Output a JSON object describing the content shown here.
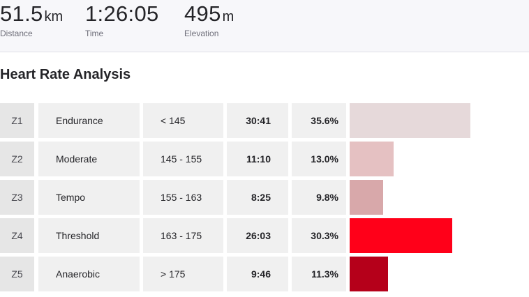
{
  "stats": {
    "distance": {
      "value": "51.5",
      "unit": "km",
      "label": "Distance"
    },
    "time": {
      "value": "1:26:05",
      "unit": "",
      "label": "Time"
    },
    "elevation": {
      "value": "495",
      "unit": "m",
      "label": "Elevation"
    }
  },
  "section_title": "Heart Rate Analysis",
  "zones": [
    {
      "zone": "Z1",
      "name": "Endurance",
      "range": "< 145",
      "time": "30:41",
      "percent": "35.6%",
      "share": 35.6,
      "color": "#e6d9da"
    },
    {
      "zone": "Z2",
      "name": "Moderate",
      "range": "145 - 155",
      "time": "11:10",
      "percent": "13.0%",
      "share": 13.0,
      "color": "#e5c1c2"
    },
    {
      "zone": "Z3",
      "name": "Tempo",
      "range": "155 - 163",
      "time": "8:25",
      "percent": "9.8%",
      "share": 9.8,
      "color": "#d8a8aa"
    },
    {
      "zone": "Z4",
      "name": "Threshold",
      "range": "163 - 175",
      "time": "26:03",
      "percent": "30.3%",
      "share": 30.3,
      "color": "#ff0019"
    },
    {
      "zone": "Z5",
      "name": "Anaerobic",
      "range": "> 175",
      "time": "9:46",
      "percent": "11.3%",
      "share": 11.3,
      "color": "#b5001a"
    }
  ]
}
